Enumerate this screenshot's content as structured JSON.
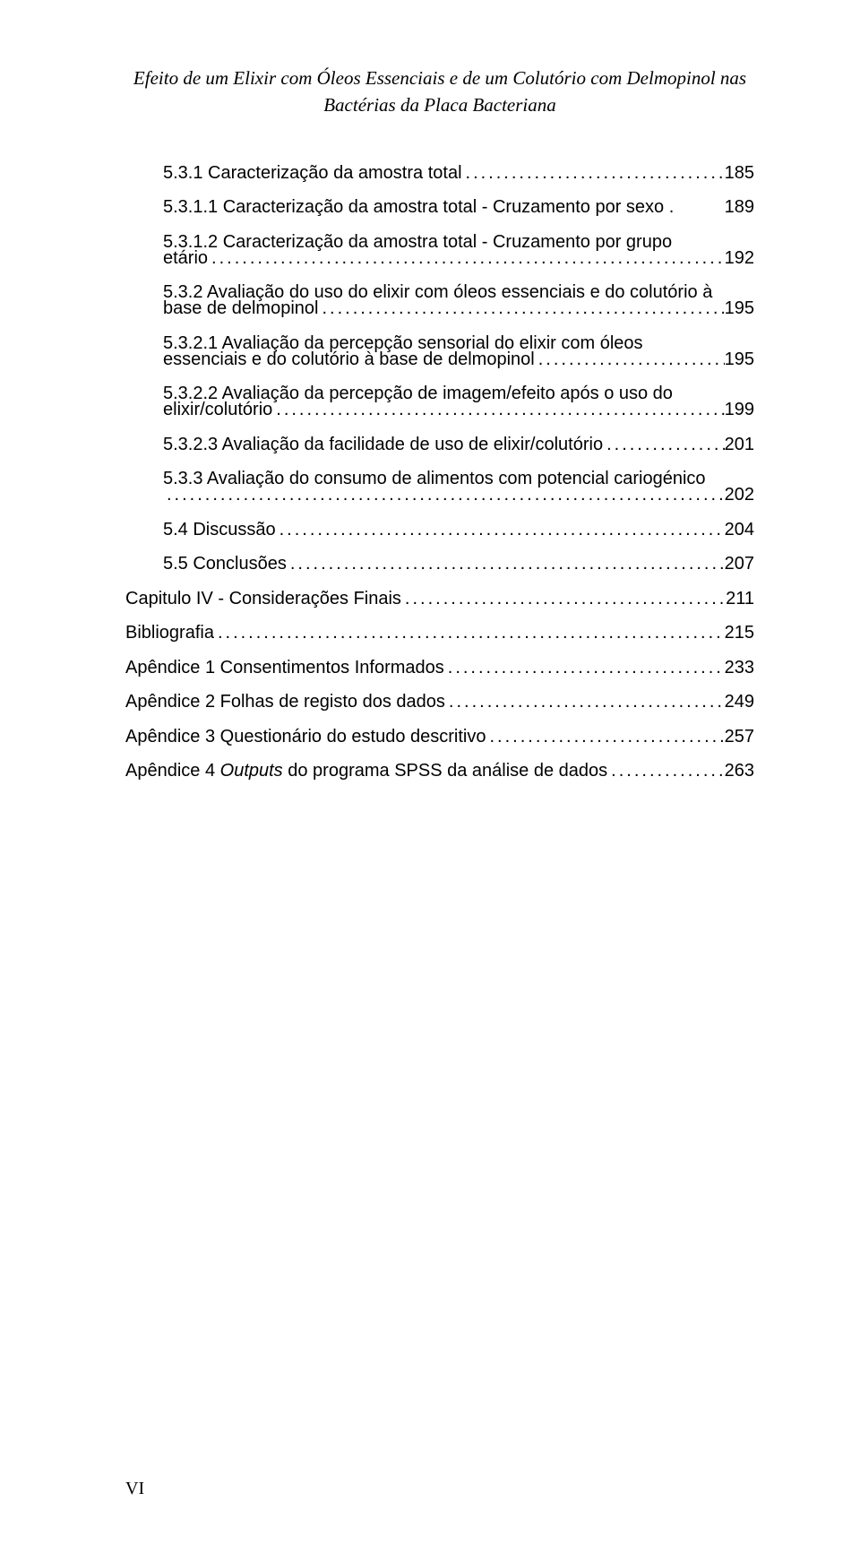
{
  "header": {
    "line1": "Efeito de um Elixir com Óleos Essenciais e de um Colutório com Delmopinol nas",
    "line2": "Bactérias da Placa Bacteriana"
  },
  "toc": [
    {
      "indent": "ind1",
      "label": "5.3.1 Caracterização da amostra total",
      "page": "185"
    },
    {
      "indent": "ind1",
      "label": "5.3.1.1 Caracterização da amostra total - Cruzamento por sexo .",
      "page": "189",
      "nodots": true
    },
    {
      "indent": "ind1",
      "label": "5.3.1.2 Caracterização da amostra total - Cruzamento por grupo",
      "wrap": "etário",
      "page": "192"
    },
    {
      "indent": "ind1",
      "label": "5.3.2 Avaliação do uso do elixir com óleos essenciais e do colutório à",
      "wrap": "base de delmopinol",
      "page": "195"
    },
    {
      "indent": "ind1",
      "label": "5.3.2.1 Avaliação da percepção sensorial do elixir com óleos",
      "wrap": "essenciais e do colutório à base de delmopinol",
      "page": "195"
    },
    {
      "indent": "ind1",
      "label": "5.3.2.2 Avaliação da percepção de imagem/efeito após o uso do",
      "wrap": "elixir/colutório",
      "page": "199"
    },
    {
      "indent": "ind1",
      "label": "5.3.2.3 Avaliação da facilidade de uso de elixir/colutório",
      "page": "201"
    },
    {
      "indent": "ind1",
      "label": "5.3.3 Avaliação do consumo de alimentos com potencial cariogénico",
      "wrap": "",
      "page": "202"
    },
    {
      "indent": "ind1",
      "label": "5.4 Discussão",
      "page": "204"
    },
    {
      "indent": "ind1",
      "label": "5.5 Conclusões",
      "page": "207"
    },
    {
      "indent": "ind0",
      "label": "Capitulo IV - Considerações Finais",
      "page": "211"
    },
    {
      "indent": "ind0",
      "label": "Bibliografia",
      "page": "215"
    },
    {
      "indent": "ind0",
      "label": "Apêndice 1  Consentimentos Informados",
      "page": "233"
    },
    {
      "indent": "ind0",
      "label": "Apêndice 2 Folhas de registo dos dados",
      "page": "249"
    },
    {
      "indent": "ind0",
      "label": "Apêndice 3 Questionário do estudo descritivo",
      "page": "257"
    },
    {
      "indent": "ind0",
      "label": "Apêndice 4 Outputs do programa SPSS da análise de dados",
      "page": "263",
      "italicWord": "Outputs"
    }
  ],
  "footer": "VI"
}
